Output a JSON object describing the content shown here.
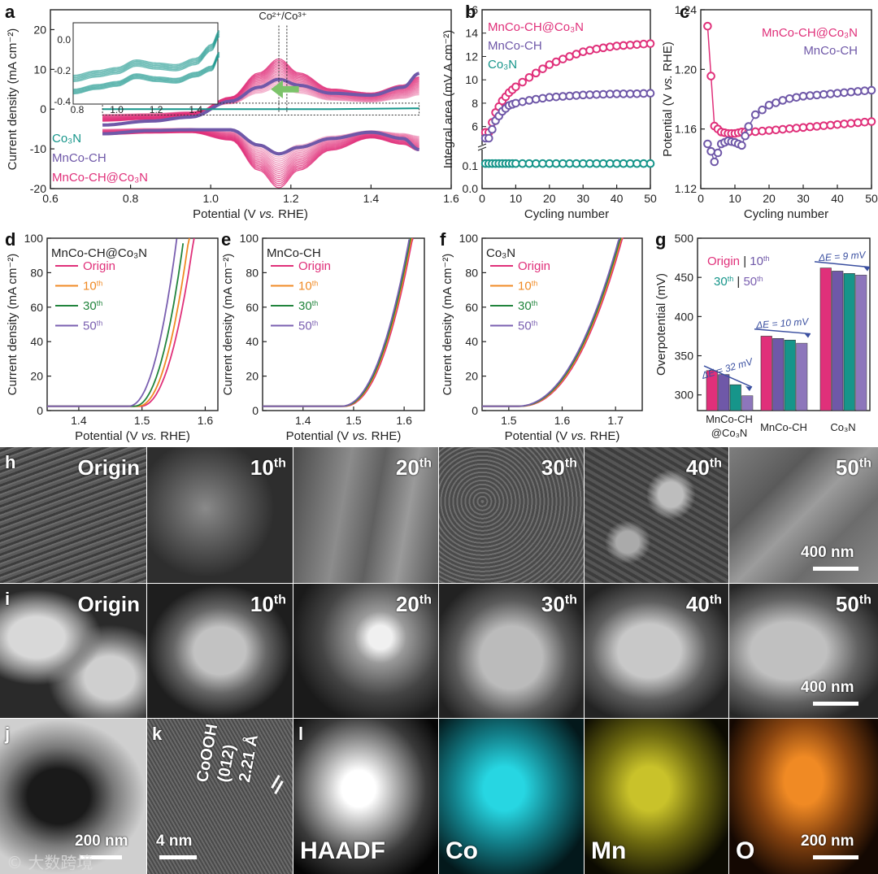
{
  "colors": {
    "composite": "#e0307a",
    "mnco": "#6f58a8",
    "co3n": "#16958a",
    "orange": "#f08a24",
    "green": "#21843c",
    "purple": "#7a5fb0",
    "arrow": "#3a4fa0"
  },
  "chart_data": [
    {
      "panel": "a",
      "type": "line",
      "xlabel": "Potential (V vs. RHE)",
      "ylabel": "Current density (mA cm⁻²)",
      "xlim": [
        0.6,
        1.6
      ],
      "ylim": [
        -20,
        25
      ],
      "xticks": [
        "0.6",
        "0.8",
        "1.0",
        "1.2",
        "1.4",
        "1.6"
      ],
      "yticks": [
        "-20",
        "-10",
        "0",
        "10",
        "20"
      ],
      "annotation": "Co²⁺/Co³⁺",
      "legend": [
        "Co₃N",
        "MnCo-CH",
        "MnCo-CH@Co₃N"
      ],
      "series": [
        {
          "name": "MnCo-CH@Co₃N",
          "x": [
            0.73,
            0.85,
            0.95,
            1.05,
            1.12,
            1.17,
            1.22,
            1.3,
            1.4,
            1.48,
            1.52
          ],
          "y": [
            -3,
            -2.5,
            -1.5,
            3,
            9,
            12.5,
            9,
            5,
            4,
            6,
            8
          ]
        },
        {
          "name": "MnCo-CH",
          "x": [
            0.73,
            0.85,
            0.95,
            1.05,
            1.12,
            1.17,
            1.22,
            1.3,
            1.4,
            1.48,
            1.52
          ],
          "y": [
            -4,
            -3,
            -2,
            2,
            5.5,
            7.5,
            6,
            4,
            3.5,
            5.5,
            9
          ]
        },
        {
          "name": "Co₃N",
          "x": [
            0.73,
            1.0,
            1.3,
            1.52
          ],
          "y": [
            0,
            0,
            0,
            0.2
          ]
        }
      ],
      "inset": {
        "xlim": [
          0.8,
          1.5
        ],
        "ylim": [
          -0.4,
          0.1
        ],
        "xticks": [
          "0.8",
          "1.0",
          "1.2",
          "1.4"
        ],
        "yticks": [
          "0.0",
          "-0.2",
          "-0.4"
        ],
        "x": [
          0.78,
          0.9,
          1.0,
          1.1,
          1.2,
          1.3,
          1.4,
          1.48,
          1.52
        ],
        "y": [
          -0.27,
          -0.24,
          -0.22,
          -0.17,
          -0.19,
          -0.2,
          -0.16,
          -0.07,
          0.02
        ]
      }
    },
    {
      "panel": "b",
      "type": "scatter",
      "xlabel": "Cycling number",
      "ylabel": "Integral area (mV A cm⁻²)",
      "xlim": [
        0,
        50
      ],
      "xticks": [
        "0",
        "10",
        "20",
        "30",
        "40",
        "50"
      ],
      "yticks_upper": [
        "6",
        "8",
        "10",
        "12",
        "14",
        "16"
      ],
      "yticks_lower": [
        "0.0",
        "0.1"
      ],
      "legend": [
        "MnCo-CH@Co₃N",
        "MnCo-CH",
        "Co₃N"
      ],
      "series": [
        {
          "name": "MnCo-CH@Co₃N",
          "x": [
            2,
            4,
            6,
            8,
            10,
            15,
            20,
            25,
            30,
            35,
            40,
            45,
            50
          ],
          "y": [
            5.5,
            7.2,
            8.2,
            8.9,
            9.4,
            10.4,
            11.3,
            11.9,
            12.4,
            12.7,
            12.9,
            13.0,
            13.1
          ]
        },
        {
          "name": "MnCo-CH",
          "x": [
            2,
            4,
            6,
            8,
            10,
            15,
            20,
            25,
            30,
            35,
            40,
            45,
            50
          ],
          "y": [
            5.0,
            6.5,
            7.3,
            7.8,
            8.0,
            8.3,
            8.5,
            8.6,
            8.7,
            8.75,
            8.8,
            8.8,
            8.85
          ]
        },
        {
          "name": "Co₃N",
          "x": [
            2,
            10,
            20,
            30,
            40,
            50
          ],
          "y": [
            0.11,
            0.11,
            0.11,
            0.11,
            0.11,
            0.11
          ]
        }
      ]
    },
    {
      "panel": "c",
      "type": "scatter",
      "xlabel": "Cycling number",
      "ylabel": "Potential (V vs. RHE)",
      "xlim": [
        0,
        50
      ],
      "ylim": [
        1.12,
        1.24
      ],
      "xticks": [
        "0",
        "10",
        "20",
        "30",
        "40",
        "50"
      ],
      "yticks": [
        "1.12",
        "1.16",
        "1.20",
        "1.24"
      ],
      "legend": [
        "MnCo-CH@Co₃N",
        "MnCo-CH"
      ],
      "series": [
        {
          "name": "MnCo-CH@Co₃N",
          "x": [
            2,
            4,
            6,
            8,
            10,
            12,
            15,
            20,
            25,
            30,
            35,
            40,
            45,
            50
          ],
          "y": [
            1.229,
            1.162,
            1.158,
            1.157,
            1.157,
            1.158,
            1.158,
            1.159,
            1.16,
            1.161,
            1.162,
            1.163,
            1.164,
            1.165
          ]
        },
        {
          "name": "MnCo-CH",
          "x": [
            2,
            3,
            4,
            6,
            8,
            10,
            12,
            15,
            20,
            25,
            30,
            35,
            40,
            45,
            50
          ],
          "y": [
            1.15,
            1.145,
            1.138,
            1.15,
            1.152,
            1.151,
            1.149,
            1.168,
            1.176,
            1.18,
            1.182,
            1.183,
            1.184,
            1.185,
            1.186
          ]
        }
      ]
    },
    {
      "panel": "d",
      "type": "line",
      "title": "MnCo-CH@Co₃N",
      "xlabel": "Potential (V vs. RHE)",
      "ylabel": "Current density (mA cm⁻²)",
      "xlim": [
        1.35,
        1.62
      ],
      "ylim": [
        0,
        100
      ],
      "xticks": [
        "1.4",
        "1.5",
        "1.6"
      ],
      "yticks": [
        "0",
        "20",
        "40",
        "60",
        "80",
        "100"
      ],
      "series": [
        {
          "name": "Origin",
          "onset": 1.497,
          "end": 1.583
        },
        {
          "name": "10th",
          "onset": 1.493,
          "end": 1.575
        },
        {
          "name": "30th",
          "onset": 1.487,
          "end": 1.567
        },
        {
          "name": "50th",
          "onset": 1.478,
          "end": 1.556
        }
      ]
    },
    {
      "panel": "e",
      "type": "line",
      "title": "MnCo-CH",
      "xlabel": "Potential (V vs. RHE)",
      "ylabel": "Current density (mA cm⁻²)",
      "xlim": [
        1.32,
        1.64
      ],
      "ylim": [
        0,
        100
      ],
      "xticks": [
        "1.4",
        "1.5",
        "1.6"
      ],
      "yticks": [
        "0",
        "20",
        "40",
        "60",
        "80",
        "100"
      ],
      "series": [
        {
          "name": "Origin",
          "onset": 1.48,
          "end": 1.618
        },
        {
          "name": "10th",
          "onset": 1.478,
          "end": 1.616
        },
        {
          "name": "30th",
          "onset": 1.476,
          "end": 1.614
        },
        {
          "name": "50th",
          "onset": 1.474,
          "end": 1.612
        }
      ]
    },
    {
      "panel": "f",
      "type": "line",
      "title": "Co₃N",
      "xlabel": "Potential (V vs. RHE)",
      "ylabel": "Current density (mA cm⁻²)",
      "xlim": [
        1.45,
        1.75
      ],
      "ylim": [
        0,
        100
      ],
      "xticks": [
        "1.5",
        "1.6",
        "1.7"
      ],
      "yticks": [
        "0",
        "20",
        "40",
        "60",
        "80",
        "100"
      ],
      "series": [
        {
          "name": "Origin",
          "onset": 1.52,
          "end": 1.715
        },
        {
          "name": "10th",
          "onset": 1.518,
          "end": 1.713
        },
        {
          "name": "30th",
          "onset": 1.516,
          "end": 1.711
        },
        {
          "name": "50th",
          "onset": 1.514,
          "end": 1.709
        }
      ]
    },
    {
      "panel": "g",
      "type": "bar",
      "ylabel": "Overpotential (mV)",
      "ylim": [
        280,
        500
      ],
      "yticks": [
        "300",
        "350",
        "400",
        "450",
        "500"
      ],
      "categories": [
        "MnCo-CH @Co₃N",
        "MnCo-CH",
        "Co₃N"
      ],
      "series": [
        {
          "name": "Origin",
          "values": [
            331,
            375,
            462
          ]
        },
        {
          "name": "10th",
          "values": [
            326,
            372,
            458
          ]
        },
        {
          "name": "30th",
          "values": [
            313,
            370,
            455
          ]
        },
        {
          "name": "50th",
          "values": [
            299,
            366,
            453
          ]
        }
      ],
      "annotations": [
        "ΔE = 32 mV",
        "ΔE = 10 mV",
        "ΔE = 9 mV"
      ]
    }
  ],
  "legend_dfgh": [
    "Origin",
    "10th",
    "30th",
    "50th"
  ],
  "panel_g_legend": {
    "origin": "Origin",
    "tenth": "10",
    "thirty": "30",
    "fifty": "50",
    "th": "th",
    "sep": "|"
  },
  "panel_letters": {
    "a": "a",
    "b": "b",
    "c": "c",
    "d": "d",
    "e": "e",
    "f": "f",
    "g": "g",
    "h": "h",
    "i": "i",
    "j": "j",
    "k": "k",
    "l": "l"
  },
  "row_h": {
    "labels": [
      "Origin",
      "10",
      "20",
      "30",
      "40",
      "50"
    ],
    "scale": "400 nm"
  },
  "row_i": {
    "labels": [
      "Origin",
      "10",
      "20",
      "30",
      "40",
      "50"
    ],
    "scale": "400 nm"
  },
  "row_jl": {
    "j_scale": "200 nm",
    "k_scale": "4 nm",
    "k_text": [
      "CoOOH",
      "(012)",
      "2.21 Å"
    ],
    "labels": [
      "HAADF",
      "Co",
      "Mn",
      "O"
    ],
    "scale": "200 nm"
  },
  "superscript": "th",
  "watermark": "© 大数跨境"
}
